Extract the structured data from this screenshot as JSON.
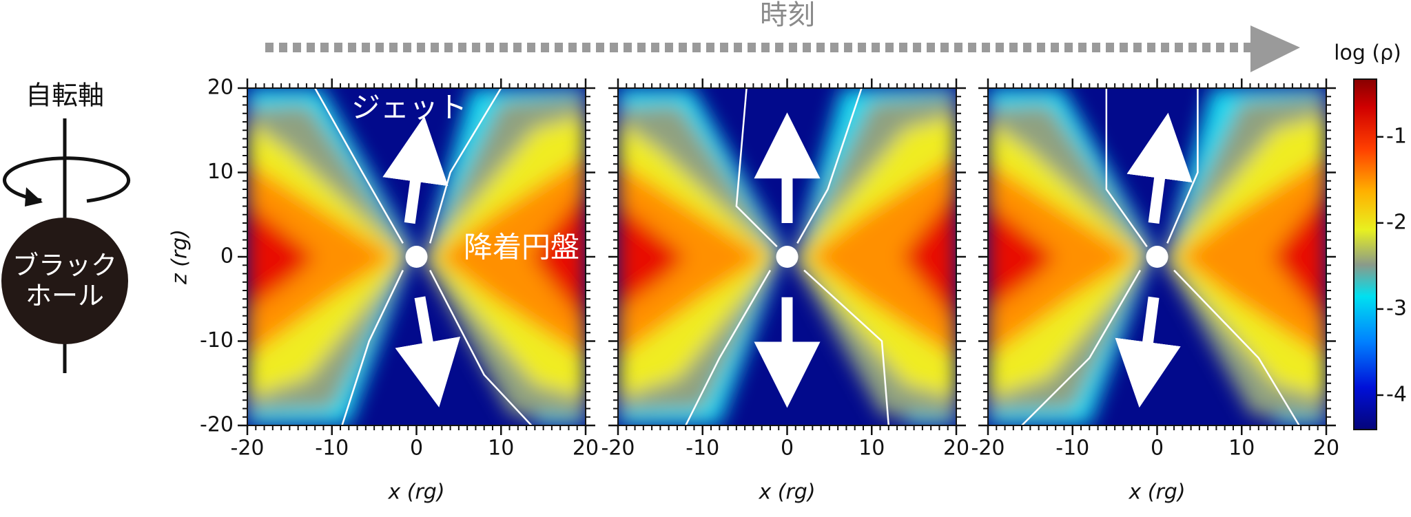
{
  "figure": {
    "time_label": "時刻",
    "axis_label": "自転軸",
    "black_hole": [
      "ブラック",
      "ホール"
    ],
    "jet_label": "ジェット",
    "disk_label": "降着円盤"
  },
  "chart_data": [
    {
      "type": "heatmap",
      "xlabel": "x (rg)",
      "ylabel": "z (rg)",
      "xlim": [
        -20,
        20
      ],
      "xticks": [
        -20,
        -10,
        0,
        10,
        20
      ],
      "ylim": [
        -20,
        20
      ],
      "yticks": [
        -20,
        -10,
        0,
        10,
        20
      ]
    },
    {
      "type": "heatmap",
      "xlabel": "x (rg)",
      "xlim": [
        -20,
        20
      ],
      "xticks": [
        -20,
        -10,
        0,
        10,
        20
      ],
      "ylim": [
        -20,
        20
      ],
      "yticks": [
        -20,
        -10,
        0,
        10,
        20
      ]
    },
    {
      "type": "heatmap",
      "xlabel": "x (rg)",
      "xlim": [
        -20,
        20
      ],
      "xticks": [
        -20,
        -10,
        0,
        10,
        20
      ],
      "ylim": [
        -20,
        20
      ],
      "yticks": [
        -20,
        -10,
        0,
        10,
        20
      ]
    }
  ],
  "colorbar": {
    "label": "log (ρ)",
    "lim": [
      -4.4,
      -0.33
    ],
    "ticks": [
      -1,
      -2,
      -3,
      -4
    ]
  }
}
